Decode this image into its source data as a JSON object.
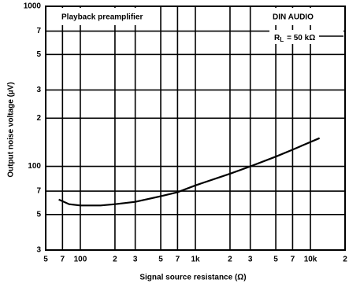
{
  "chart_data": {
    "type": "line",
    "annotations": [
      "Playback preamplifier",
      "DIN AUDIO"
    ],
    "load": {
      "symbol": "R",
      "subscript": "L",
      "text": "= 50 kΩ"
    },
    "xlabel": "Signal source resistance (Ω)",
    "ylabel": "Output noise voltage (µV)",
    "x": [
      65,
      80,
      100,
      150,
      200,
      300,
      500,
      700,
      1000,
      2000,
      3000,
      5000,
      7000,
      10000,
      12000
    ],
    "values": [
      62,
      58,
      57,
      57,
      58,
      60,
      65,
      69,
      76,
      90,
      100,
      115,
      127,
      142,
      150
    ],
    "color": "#000000",
    "xscale": "log",
    "yscale": "log",
    "grid": true,
    "xlim": [
      50,
      20000
    ],
    "xticks": [
      {
        "value": 50,
        "label": "5"
      },
      {
        "value": 70,
        "label": "7"
      },
      100,
      {
        "value": 200,
        "label": "2"
      },
      {
        "value": 300,
        "label": "3"
      },
      {
        "value": 500,
        "label": "5"
      },
      {
        "value": 700,
        "label": "7"
      },
      {
        "value": 1000,
        "label": "1k"
      },
      {
        "value": 2000,
        "label": "2"
      },
      {
        "value": 3000,
        "label": "3"
      },
      {
        "value": 5000,
        "label": "5"
      },
      {
        "value": 7000,
        "label": "7"
      },
      {
        "value": 10000,
        "label": "10k"
      },
      {
        "value": 20000,
        "label": "2"
      }
    ],
    "ylim": [
      30,
      1000
    ],
    "yticks": [
      {
        "value": 30,
        "label": "3"
      },
      {
        "value": 50,
        "label": "5"
      },
      {
        "value": 70,
        "label": "7"
      },
      100,
      {
        "value": 200,
        "label": "2"
      },
      {
        "value": 300,
        "label": "3"
      },
      {
        "value": 500,
        "label": "5"
      },
      {
        "value": 700,
        "label": "7"
      },
      1000
    ]
  }
}
